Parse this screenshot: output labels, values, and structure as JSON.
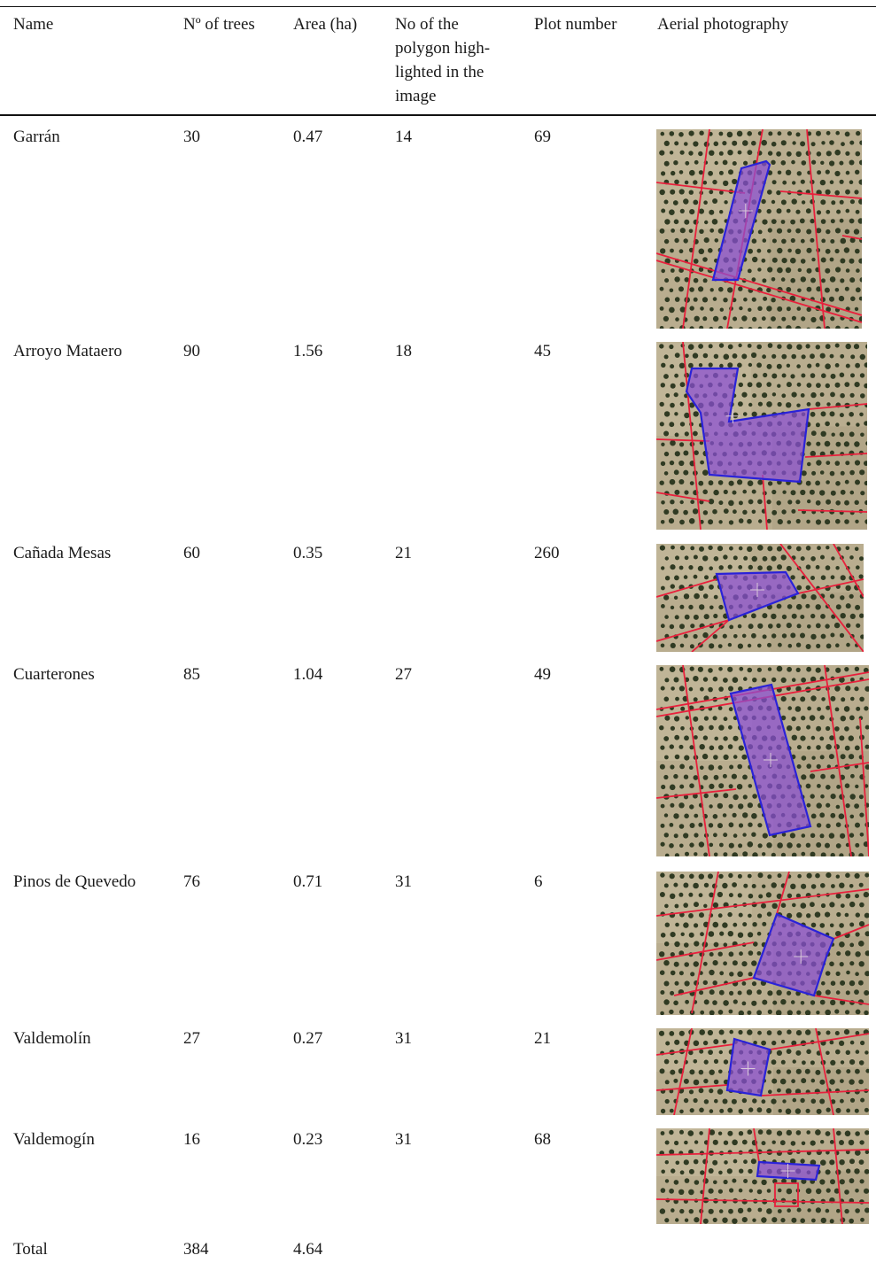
{
  "table": {
    "headers": {
      "name": "Name",
      "trees": "Nº of trees",
      "area": "Area (ha)",
      "polygon_line1": "No of the",
      "polygon_line2": "polygon high-",
      "polygon_line3": "lighted in the",
      "polygon_line4": "image",
      "plot": "Plot number",
      "photo": "Aerial photography"
    },
    "rows": [
      {
        "name": "Garrán",
        "trees": "30",
        "area": "0.47",
        "polygon": "14",
        "plot": "69"
      },
      {
        "name": "Arroyo Mataero",
        "trees": "90",
        "area": "1.56",
        "polygon": "18",
        "plot": "45"
      },
      {
        "name": "Cañada Mesas",
        "trees": "60",
        "area": "0.35",
        "polygon": "21",
        "plot": "260"
      },
      {
        "name": "Cuarterones",
        "trees": "85",
        "area": "1.04",
        "polygon": "27",
        "plot": "49"
      },
      {
        "name": "Pinos de Quevedo",
        "trees": "76",
        "area": "0.71",
        "polygon": "31",
        "plot": "6"
      },
      {
        "name": "Valdemolín",
        "trees": "27",
        "area": "0.27",
        "polygon": "31",
        "plot": "21"
      },
      {
        "name": "Valdemogín",
        "trees": "16",
        "area": "0.23",
        "polygon": "31",
        "plot": "68"
      }
    ],
    "total": {
      "label": "Total",
      "trees": "384",
      "area": "4.64"
    }
  },
  "colors": {
    "ground": "#b9ad8f",
    "tree": "#2f3a22",
    "parcel_line": "#e8203c",
    "polygon_fill": "#8a4fd6",
    "polygon_stroke": "#2a22d8"
  }
}
